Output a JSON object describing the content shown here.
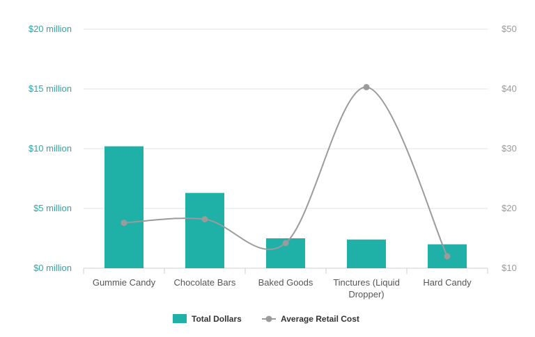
{
  "chart_data": {
    "type": "bar",
    "categories": [
      [
        "Gummie Candy"
      ],
      [
        "Chocolate Bars"
      ],
      [
        "Baked Goods"
      ],
      [
        "Tinctures (Liquid",
        "Dropper)"
      ],
      [
        "Hard Candy"
      ]
    ],
    "series": [
      {
        "name": "Total Dollars",
        "type": "bar",
        "axis": "left",
        "color": "#1fb0a8",
        "values": [
          10.2,
          6.3,
          2.5,
          2.4,
          2.0
        ]
      },
      {
        "name": "Average Retail Cost",
        "type": "line",
        "axis": "right",
        "color": "#9b9b9b",
        "values": [
          17.6,
          18.2,
          14.2,
          40.3,
          12.0
        ]
      }
    ],
    "left_axis": {
      "min": 0,
      "max": 20,
      "ticks": [
        0,
        5,
        10,
        15,
        20
      ],
      "tick_labels": [
        "$0 million",
        "$5 million",
        "$10 million",
        "$15 million",
        "$20 million"
      ]
    },
    "right_axis": {
      "min": 10,
      "max": 50,
      "ticks": [
        10,
        20,
        30,
        40,
        50
      ],
      "tick_labels": [
        "$10",
        "$20",
        "$30",
        "$40",
        "$50"
      ]
    },
    "grid": true,
    "legend_position": "bottom"
  }
}
